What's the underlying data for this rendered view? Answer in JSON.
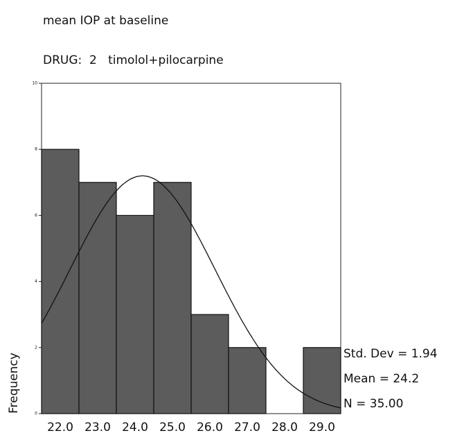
{
  "chart_data": {
    "type": "histogram",
    "title": "mean IOP at baseline",
    "subtitle": "DRUG:  2   timolol+pilocarpine",
    "y_label": "Frequency",
    "xticks": [
      {
        "value": 22,
        "label": "22.0"
      },
      {
        "value": 23,
        "label": "23.0"
      },
      {
        "value": 24,
        "label": "24.0"
      },
      {
        "value": 25,
        "label": "25.0"
      },
      {
        "value": 26,
        "label": "26.0"
      },
      {
        "value": 27,
        "label": "27.0"
      },
      {
        "value": 28,
        "label": "28.0"
      },
      {
        "value": 29,
        "label": "29.0"
      }
    ],
    "values": [
      8,
      7,
      6,
      7,
      3,
      2,
      0,
      2
    ],
    "xlim": [
      21.5,
      29.5
    ],
    "ylim": [
      0,
      10
    ],
    "yticks": [
      0,
      2,
      4,
      6,
      8,
      10
    ],
    "color": "#5c5c5c",
    "stats": [
      {
        "value": 1.94,
        "label": "Std. Dev = 1.94"
      },
      {
        "value": 24.2,
        "label": "Mean = 24.2"
      },
      {
        "value": 35,
        "label": "N = 35.00"
      }
    ]
  }
}
